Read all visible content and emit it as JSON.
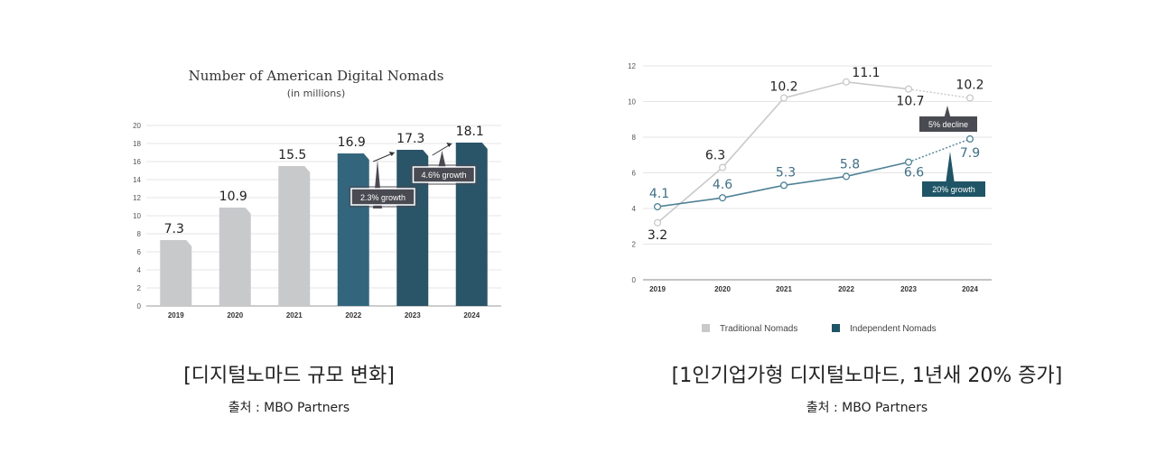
{
  "left": {
    "caption": "[디지털노마드 규모 변화]",
    "source": "출처 : MBO Partners",
    "colors": {
      "old": "#c8c9cb",
      "new1": "#33667d",
      "new2": "#2a5468",
      "callout": "#4a4a52"
    }
  },
  "right": {
    "caption": "[1인기업가형 디지털노마드, 1년새 20% 증가]",
    "source": "출처 : MBO Partners",
    "colors": {
      "traditional": "#c8c9cb",
      "independent": "#4f8296",
      "decline_box": "#4a4a52",
      "growth_box": "#1f5566"
    }
  },
  "chart_data": [
    {
      "type": "bar",
      "title": "Number of American Digital Nomads",
      "subtitle": "(in millions)",
      "categories": [
        "2019",
        "2020",
        "2021",
        "2022",
        "2023",
        "2024"
      ],
      "values": [
        7.3,
        10.9,
        15.5,
        16.9,
        17.3,
        18.1
      ],
      "value_labels": [
        "7.3",
        "10.9",
        "15.5",
        "16.9",
        "17.3",
        "18.1"
      ],
      "ylim": [
        0,
        20
      ],
      "yticks": [
        "0",
        "2",
        "4",
        "6",
        "8",
        "10",
        "12",
        "14",
        "16",
        "18",
        "20"
      ],
      "grid": true,
      "annotations": [
        {
          "text": "2.3% growth",
          "between": [
            "2022",
            "2023"
          ]
        },
        {
          "text": "4.6% growth",
          "between": [
            "2023",
            "2024"
          ]
        }
      ]
    },
    {
      "type": "line",
      "x": [
        "2019",
        "2020",
        "2021",
        "2022",
        "2023",
        "2024"
      ],
      "series": [
        {
          "name": "Traditional Nomads",
          "values": [
            3.2,
            6.3,
            10.2,
            11.1,
            10.7,
            10.2
          ],
          "labels": [
            "3.2",
            "6.3",
            "10.2",
            "11.1",
            "10.7",
            "10.2"
          ]
        },
        {
          "name": "Independent Nomads",
          "values": [
            4.1,
            4.6,
            5.3,
            5.8,
            6.6,
            7.9
          ],
          "labels": [
            "4.1",
            "4.6",
            "5.3",
            "5.8",
            "6.6",
            "7.9"
          ]
        }
      ],
      "ylim": [
        0,
        12
      ],
      "yticks": [
        "0",
        "2",
        "4",
        "6",
        "8",
        "10",
        "12"
      ],
      "grid": true,
      "legend": "bottom",
      "annotations": [
        {
          "text": "5% decline",
          "series": "Traditional Nomads",
          "x": "2024"
        },
        {
          "text": "20% growth",
          "series": "Independent Nomads",
          "x": "2024"
        }
      ]
    }
  ]
}
